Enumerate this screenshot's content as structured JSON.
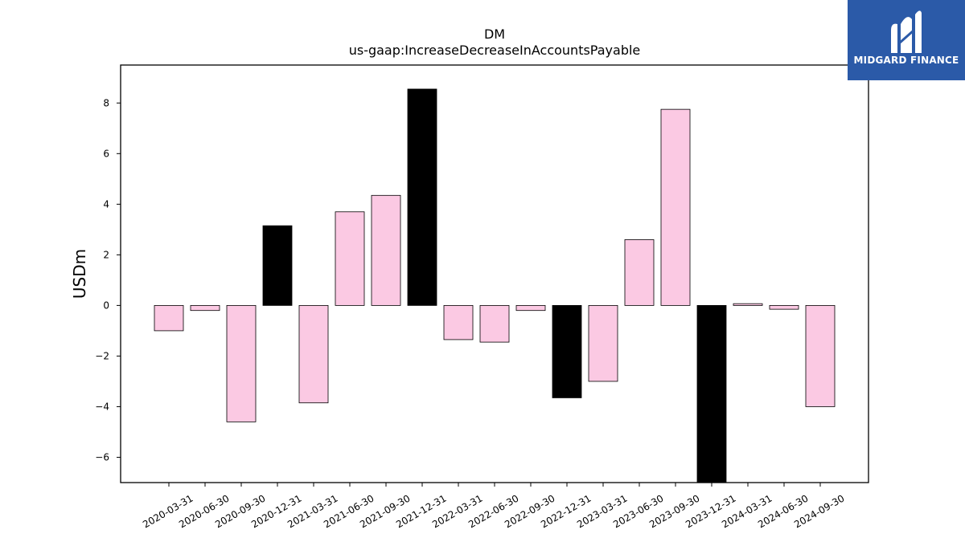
{
  "logo": {
    "text": "MIDGARD FINANCE",
    "icon": "midgard-logo-icon"
  },
  "chart_data": {
    "type": "bar",
    "title": "DM",
    "subtitle": "us-gaap:IncreaseDecreaseInAccountsPayable",
    "xlabel": "",
    "ylabel": "USDm",
    "ylim": [
      -7.0,
      9.5
    ],
    "yticks": [
      -6,
      -4,
      -2,
      0,
      2,
      4,
      6,
      8
    ],
    "ytick_labels": [
      "−6",
      "−4",
      "−2",
      "0",
      "2",
      "4",
      "6",
      "8"
    ],
    "grid": false,
    "categories": [
      "2020-03-31",
      "2020-06-30",
      "2020-09-30",
      "2020-12-31",
      "2021-03-31",
      "2021-06-30",
      "2021-09-30",
      "2021-12-31",
      "2022-03-31",
      "2022-06-30",
      "2022-09-30",
      "2022-12-31",
      "2023-03-31",
      "2023-06-30",
      "2023-09-30",
      "2023-12-31",
      "2024-03-31",
      "2024-06-30",
      "2024-09-30"
    ],
    "values": [
      -1.0,
      -0.2,
      -4.6,
      3.15,
      -3.85,
      3.7,
      4.35,
      8.55,
      -1.35,
      -1.45,
      -0.2,
      -3.65,
      -3.0,
      2.6,
      7.75,
      -7.0,
      0.07,
      -0.15,
      -4.0
    ],
    "colors": [
      "#fbc9e3",
      "#fbc9e3",
      "#fbc9e3",
      "#000000",
      "#fbc9e3",
      "#fbc9e3",
      "#fbc9e3",
      "#000000",
      "#fbc9e3",
      "#fbc9e3",
      "#fbc9e3",
      "#000000",
      "#fbc9e3",
      "#fbc9e3",
      "#fbc9e3",
      "#000000",
      "#fbc9e3",
      "#fbc9e3",
      "#fbc9e3"
    ],
    "bar_edge_color": "#000000"
  }
}
